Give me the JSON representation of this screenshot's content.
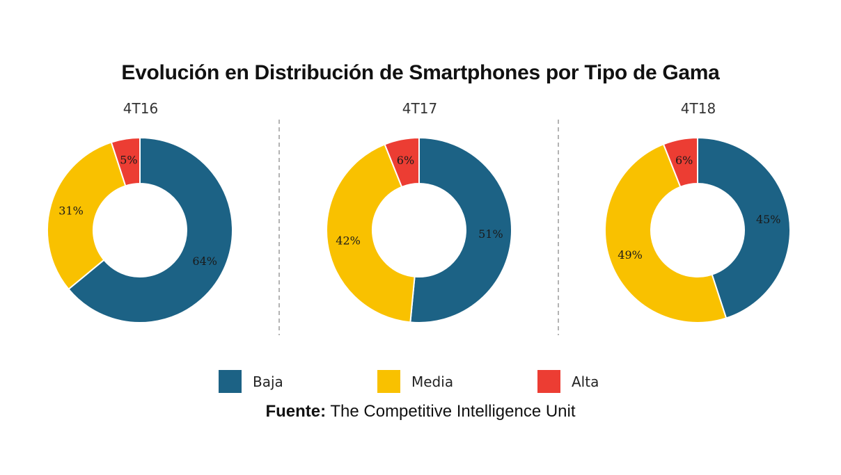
{
  "title": "Evolución en Distribución de Smartphones por Tipo de Gama",
  "legend": [
    {
      "label": "Baja",
      "color": "#1c6285"
    },
    {
      "label": "Media",
      "color": "#f9c100"
    },
    {
      "label": "Alta",
      "color": "#ec3d33"
    }
  ],
  "source": {
    "label": "Fuente:",
    "text": "The Competitive Intelligence Unit"
  },
  "chart_data": [
    {
      "type": "pie",
      "title": "4T16",
      "categories": [
        "Baja",
        "Media",
        "Alta"
      ],
      "values": [
        64,
        31,
        5
      ],
      "labels": [
        "64%",
        "31%",
        "5%"
      ]
    },
    {
      "type": "pie",
      "title": "4T17",
      "categories": [
        "Baja",
        "Media",
        "Alta"
      ],
      "values": [
        51,
        42,
        6
      ],
      "labels": [
        "51%",
        "42%",
        "6%"
      ]
    },
    {
      "type": "pie",
      "title": "4T18",
      "categories": [
        "Baja",
        "Media",
        "Alta"
      ],
      "values": [
        45,
        49,
        6
      ],
      "labels": [
        "45%",
        "49%",
        "6%"
      ]
    }
  ]
}
